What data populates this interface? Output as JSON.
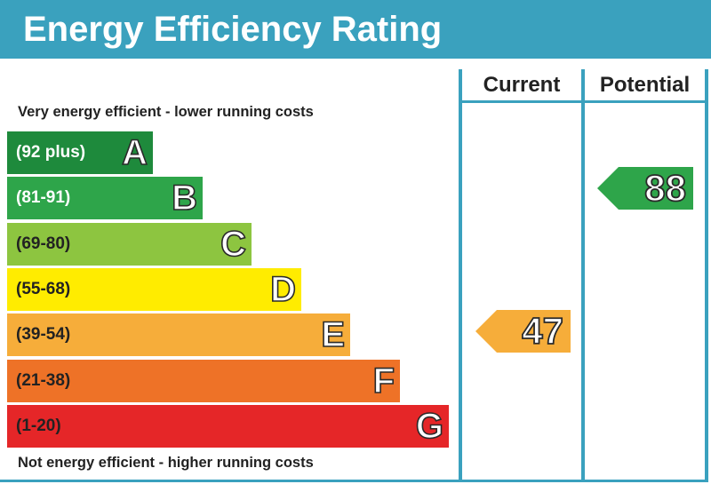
{
  "header": {
    "title": "Energy Efficiency Rating"
  },
  "captions": {
    "top": "Very energy efficient - lower running costs",
    "bottom": "Not energy efficient - higher running costs"
  },
  "columns": {
    "current": "Current",
    "potential": "Potential"
  },
  "colors": {
    "header": "#3aa1be"
  },
  "chart_data": {
    "type": "bar",
    "title": "Energy Efficiency Rating",
    "bands": [
      {
        "letter": "A",
        "range": "(92 plus)",
        "min": 92,
        "max": 100,
        "color": "#1e8a3c",
        "text_color": "#ffffff"
      },
      {
        "letter": "B",
        "range": "(81-91)",
        "min": 81,
        "max": 91,
        "color": "#2ea54a",
        "text_color": "#ffffff"
      },
      {
        "letter": "C",
        "range": "(69-80)",
        "min": 69,
        "max": 80,
        "color": "#8dc540",
        "text_color": "#222222"
      },
      {
        "letter": "D",
        "range": "(55-68)",
        "min": 55,
        "max": 68,
        "color": "#ffec00",
        "text_color": "#222222"
      },
      {
        "letter": "E",
        "range": "(39-54)",
        "min": 39,
        "max": 54,
        "color": "#f6ad3a",
        "text_color": "#222222"
      },
      {
        "letter": "F",
        "range": "(21-38)",
        "min": 21,
        "max": 38,
        "color": "#ee7227",
        "text_color": "#222222"
      },
      {
        "letter": "G",
        "range": "(1-20)",
        "min": 1,
        "max": 20,
        "color": "#e52628",
        "text_color": "#222222"
      }
    ],
    "current": {
      "value": 47,
      "band": "E",
      "color": "#f6ad3a"
    },
    "potential": {
      "value": 88,
      "band": "B",
      "color": "#2ea54a"
    }
  }
}
